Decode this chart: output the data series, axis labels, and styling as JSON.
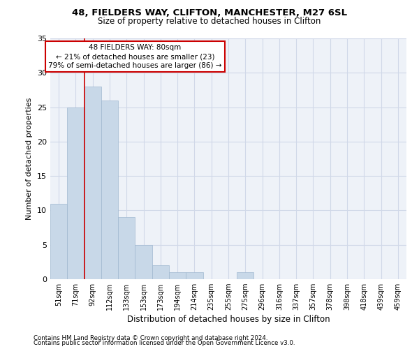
{
  "title1": "48, FIELDERS WAY, CLIFTON, MANCHESTER, M27 6SL",
  "title2": "Size of property relative to detached houses in Clifton",
  "xlabel": "Distribution of detached houses by size in Clifton",
  "ylabel": "Number of detached properties",
  "bar_labels": [
    "51sqm",
    "71sqm",
    "92sqm",
    "112sqm",
    "133sqm",
    "153sqm",
    "173sqm",
    "194sqm",
    "214sqm",
    "235sqm",
    "255sqm",
    "275sqm",
    "296sqm",
    "316sqm",
    "337sqm",
    "357sqm",
    "378sqm",
    "398sqm",
    "418sqm",
    "439sqm",
    "459sqm"
  ],
  "bar_values": [
    11,
    25,
    28,
    26,
    9,
    5,
    2,
    1,
    1,
    0,
    0,
    1,
    0,
    0,
    0,
    0,
    0,
    0,
    0,
    0,
    0
  ],
  "bar_color": "#c8d8e8",
  "bar_edge_color": "#a0b8d0",
  "grid_color": "#d0d8e8",
  "background_color": "#eef2f8",
  "vline_x": 1.5,
  "vline_color": "#cc0000",
  "annotation_text": "48 FIELDERS WAY: 80sqm\n← 21% of detached houses are smaller (23)\n79% of semi-detached houses are larger (86) →",
  "annotation_box_color": "white",
  "annotation_box_edge": "#cc0000",
  "ylim": [
    0,
    35
  ],
  "yticks": [
    0,
    5,
    10,
    15,
    20,
    25,
    30,
    35
  ],
  "footer1": "Contains HM Land Registry data © Crown copyright and database right 2024.",
  "footer2": "Contains public sector information licensed under the Open Government Licence v3.0."
}
